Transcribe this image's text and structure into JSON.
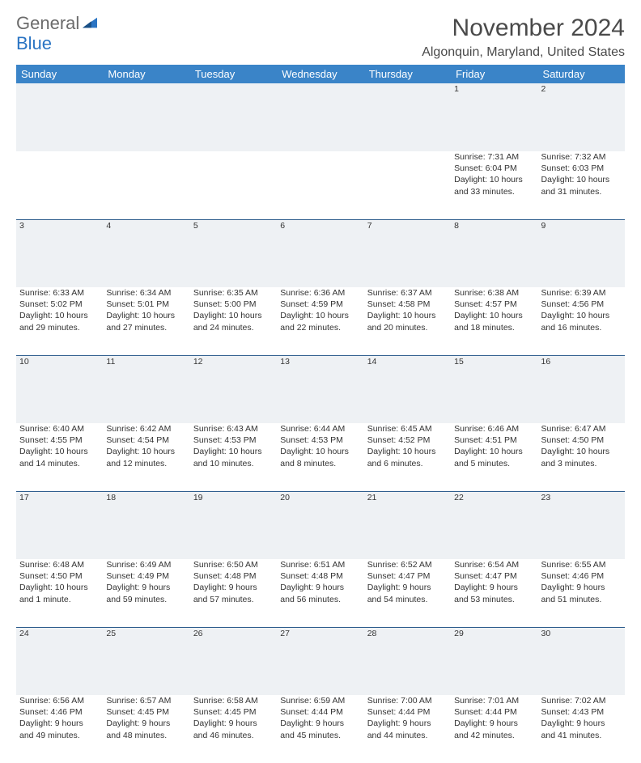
{
  "logo": {
    "word1": "General",
    "word2": "Blue"
  },
  "title": "November 2024",
  "subtitle": "Algonquin, Maryland, United States",
  "colors": {
    "header_bg": "#3a84c8",
    "header_text": "#ffffff",
    "daynum_bg": "#eef1f4",
    "daynum_border_top": "#2f5e8e",
    "body_text": "#333333",
    "title_text": "#4a4a4a",
    "logo_grey": "#6b6b6b",
    "logo_blue": "#2a74c3"
  },
  "days_of_week": [
    "Sunday",
    "Monday",
    "Tuesday",
    "Wednesday",
    "Thursday",
    "Friday",
    "Saturday"
  ],
  "weeks": [
    [
      null,
      null,
      null,
      null,
      null,
      {
        "n": "1",
        "sunrise": "Sunrise: 7:31 AM",
        "sunset": "Sunset: 6:04 PM",
        "daylight1": "Daylight: 10 hours",
        "daylight2": "and 33 minutes."
      },
      {
        "n": "2",
        "sunrise": "Sunrise: 7:32 AM",
        "sunset": "Sunset: 6:03 PM",
        "daylight1": "Daylight: 10 hours",
        "daylight2": "and 31 minutes."
      }
    ],
    [
      {
        "n": "3",
        "sunrise": "Sunrise: 6:33 AM",
        "sunset": "Sunset: 5:02 PM",
        "daylight1": "Daylight: 10 hours",
        "daylight2": "and 29 minutes."
      },
      {
        "n": "4",
        "sunrise": "Sunrise: 6:34 AM",
        "sunset": "Sunset: 5:01 PM",
        "daylight1": "Daylight: 10 hours",
        "daylight2": "and 27 minutes."
      },
      {
        "n": "5",
        "sunrise": "Sunrise: 6:35 AM",
        "sunset": "Sunset: 5:00 PM",
        "daylight1": "Daylight: 10 hours",
        "daylight2": "and 24 minutes."
      },
      {
        "n": "6",
        "sunrise": "Sunrise: 6:36 AM",
        "sunset": "Sunset: 4:59 PM",
        "daylight1": "Daylight: 10 hours",
        "daylight2": "and 22 minutes."
      },
      {
        "n": "7",
        "sunrise": "Sunrise: 6:37 AM",
        "sunset": "Sunset: 4:58 PM",
        "daylight1": "Daylight: 10 hours",
        "daylight2": "and 20 minutes."
      },
      {
        "n": "8",
        "sunrise": "Sunrise: 6:38 AM",
        "sunset": "Sunset: 4:57 PM",
        "daylight1": "Daylight: 10 hours",
        "daylight2": "and 18 minutes."
      },
      {
        "n": "9",
        "sunrise": "Sunrise: 6:39 AM",
        "sunset": "Sunset: 4:56 PM",
        "daylight1": "Daylight: 10 hours",
        "daylight2": "and 16 minutes."
      }
    ],
    [
      {
        "n": "10",
        "sunrise": "Sunrise: 6:40 AM",
        "sunset": "Sunset: 4:55 PM",
        "daylight1": "Daylight: 10 hours",
        "daylight2": "and 14 minutes."
      },
      {
        "n": "11",
        "sunrise": "Sunrise: 6:42 AM",
        "sunset": "Sunset: 4:54 PM",
        "daylight1": "Daylight: 10 hours",
        "daylight2": "and 12 minutes."
      },
      {
        "n": "12",
        "sunrise": "Sunrise: 6:43 AM",
        "sunset": "Sunset: 4:53 PM",
        "daylight1": "Daylight: 10 hours",
        "daylight2": "and 10 minutes."
      },
      {
        "n": "13",
        "sunrise": "Sunrise: 6:44 AM",
        "sunset": "Sunset: 4:53 PM",
        "daylight1": "Daylight: 10 hours",
        "daylight2": "and 8 minutes."
      },
      {
        "n": "14",
        "sunrise": "Sunrise: 6:45 AM",
        "sunset": "Sunset: 4:52 PM",
        "daylight1": "Daylight: 10 hours",
        "daylight2": "and 6 minutes."
      },
      {
        "n": "15",
        "sunrise": "Sunrise: 6:46 AM",
        "sunset": "Sunset: 4:51 PM",
        "daylight1": "Daylight: 10 hours",
        "daylight2": "and 5 minutes."
      },
      {
        "n": "16",
        "sunrise": "Sunrise: 6:47 AM",
        "sunset": "Sunset: 4:50 PM",
        "daylight1": "Daylight: 10 hours",
        "daylight2": "and 3 minutes."
      }
    ],
    [
      {
        "n": "17",
        "sunrise": "Sunrise: 6:48 AM",
        "sunset": "Sunset: 4:50 PM",
        "daylight1": "Daylight: 10 hours",
        "daylight2": "and 1 minute."
      },
      {
        "n": "18",
        "sunrise": "Sunrise: 6:49 AM",
        "sunset": "Sunset: 4:49 PM",
        "daylight1": "Daylight: 9 hours",
        "daylight2": "and 59 minutes."
      },
      {
        "n": "19",
        "sunrise": "Sunrise: 6:50 AM",
        "sunset": "Sunset: 4:48 PM",
        "daylight1": "Daylight: 9 hours",
        "daylight2": "and 57 minutes."
      },
      {
        "n": "20",
        "sunrise": "Sunrise: 6:51 AM",
        "sunset": "Sunset: 4:48 PM",
        "daylight1": "Daylight: 9 hours",
        "daylight2": "and 56 minutes."
      },
      {
        "n": "21",
        "sunrise": "Sunrise: 6:52 AM",
        "sunset": "Sunset: 4:47 PM",
        "daylight1": "Daylight: 9 hours",
        "daylight2": "and 54 minutes."
      },
      {
        "n": "22",
        "sunrise": "Sunrise: 6:54 AM",
        "sunset": "Sunset: 4:47 PM",
        "daylight1": "Daylight: 9 hours",
        "daylight2": "and 53 minutes."
      },
      {
        "n": "23",
        "sunrise": "Sunrise: 6:55 AM",
        "sunset": "Sunset: 4:46 PM",
        "daylight1": "Daylight: 9 hours",
        "daylight2": "and 51 minutes."
      }
    ],
    [
      {
        "n": "24",
        "sunrise": "Sunrise: 6:56 AM",
        "sunset": "Sunset: 4:46 PM",
        "daylight1": "Daylight: 9 hours",
        "daylight2": "and 49 minutes."
      },
      {
        "n": "25",
        "sunrise": "Sunrise: 6:57 AM",
        "sunset": "Sunset: 4:45 PM",
        "daylight1": "Daylight: 9 hours",
        "daylight2": "and 48 minutes."
      },
      {
        "n": "26",
        "sunrise": "Sunrise: 6:58 AM",
        "sunset": "Sunset: 4:45 PM",
        "daylight1": "Daylight: 9 hours",
        "daylight2": "and 46 minutes."
      },
      {
        "n": "27",
        "sunrise": "Sunrise: 6:59 AM",
        "sunset": "Sunset: 4:44 PM",
        "daylight1": "Daylight: 9 hours",
        "daylight2": "and 45 minutes."
      },
      {
        "n": "28",
        "sunrise": "Sunrise: 7:00 AM",
        "sunset": "Sunset: 4:44 PM",
        "daylight1": "Daylight: 9 hours",
        "daylight2": "and 44 minutes."
      },
      {
        "n": "29",
        "sunrise": "Sunrise: 7:01 AM",
        "sunset": "Sunset: 4:44 PM",
        "daylight1": "Daylight: 9 hours",
        "daylight2": "and 42 minutes."
      },
      {
        "n": "30",
        "sunrise": "Sunrise: 7:02 AM",
        "sunset": "Sunset: 4:43 PM",
        "daylight1": "Daylight: 9 hours",
        "daylight2": "and 41 minutes."
      }
    ]
  ]
}
